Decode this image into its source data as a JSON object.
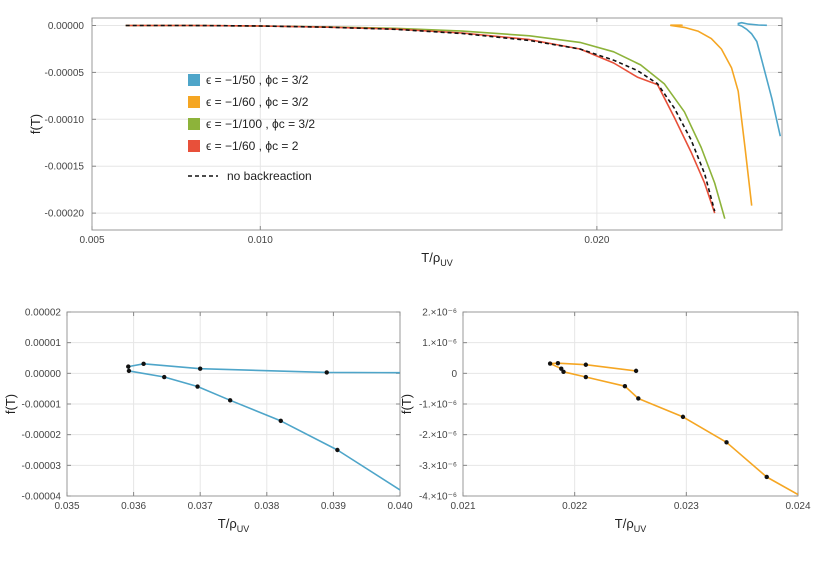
{
  "chart_data": [
    {
      "type": "line",
      "xlabel": "T/ρ",
      "xlabel_sub": "UV",
      "ylabel": "f(T)",
      "xlim": [
        0.005,
        0.0255
      ],
      "ylim": [
        -0.000218,
        8e-06
      ],
      "xticks": [
        0.005,
        0.01,
        0.02
      ],
      "xtick_labels": [
        "0.005",
        "0.010",
        "0.020"
      ],
      "yticks": [
        0,
        -5e-05,
        -0.0001,
        -0.00015,
        -0.0002
      ],
      "ytick_labels": [
        "0.00000",
        "-0.00005",
        "-0.00010",
        "-0.00015",
        "-0.00020"
      ],
      "grid": true,
      "legend_position": "left-center",
      "series": [
        {
          "name": "ϵ = −1/50 ,  ϕc = 3/2",
          "color": "#4ea5c9",
          "dash": false,
          "x": [
            0.0242,
            0.0244,
            0.0246,
            0.0248,
            0.025,
            0.0252,
            0.0254,
            0.0242,
            0.0244,
            0.0246,
            0.0248,
            0.025
          ],
          "y": [
            1.5e-06,
            1e-06,
            5e-07,
            3e-07,
            2e-07,
            1e-07,
            0.0,
            1.5e-06,
            -5e-06,
            -1.8e-05,
            -3.5e-05,
            -6e-05
          ],
          "segments": [
            {
              "x": [
                0.02418,
                0.0243,
                0.0245,
                0.0248,
                0.02505
              ],
              "y": [
                2e-06,
                3e-06,
                1.5e-06,
                5e-07,
                2e-07
              ]
            },
            {
              "x": [
                0.02418,
                0.0243,
                0.02445,
                0.0246,
                0.02475,
                0.0249,
                0.0252,
                0.02545
              ],
              "y": [
                1e-06,
                -5e-07,
                -4e-06,
                -9e-06,
                -1.7e-05,
                -3.7e-05,
                -7.8e-05,
                -0.000118
              ]
            }
          ]
        },
        {
          "name": "ϵ = −1/60 ,  ϕc = 3/2",
          "color": "#f5a623",
          "dash": false,
          "segments": [
            {
              "x": [
                0.02218,
                0.0222,
                0.0225,
                0.02255
              ],
              "y": [
                3e-07,
                3e-07,
                3e-07,
                1e-07
              ]
            },
            {
              "x": [
                0.02218,
                0.0222,
                0.0226,
                0.023,
                0.0234,
                0.0237,
                0.024,
                0.0242,
                0.0244,
                0.0246
              ],
              "y": [
                3e-07,
                0.0,
                -2e-06,
                -6e-06,
                -1.4e-05,
                -2.5e-05,
                -4.5e-05,
                -7e-05,
                -0.00013,
                -0.000192
              ]
            }
          ]
        },
        {
          "name": "ϵ = −1/100 ,  ϕc = 3/2",
          "color": "#8db33a",
          "dash": false,
          "segments": [
            {
              "x": [
                0.006,
                0.008,
                0.01,
                0.012,
                0.014,
                0.016,
                0.018,
                0.0195,
                0.0205,
                0.0213,
                0.022,
                0.0226,
                0.0231,
                0.0235,
                0.0238
              ],
              "y": [
                0.0,
                0.0,
                -5e-07,
                -1.5e-06,
                -3e-06,
                -6e-06,
                -1.1e-05,
                -1.8e-05,
                -2.8e-05,
                -4.2e-05,
                -6.2e-05,
                -9.2e-05,
                -0.00013,
                -0.000168,
                -0.000206
              ]
            }
          ]
        },
        {
          "name": "ϵ = −1/60 ,  ϕc = 2",
          "color": "#e8503a",
          "dash": false,
          "segments": [
            {
              "x": [
                0.006,
                0.008,
                0.01,
                0.012,
                0.014,
                0.016,
                0.018,
                0.0195,
                0.0205,
                0.0212,
                0.0218,
                0.0223,
                0.0228,
                0.0232,
                0.0235
              ],
              "y": [
                0.0,
                0.0,
                -5e-07,
                -1.8e-06,
                -3.8e-06,
                -8e-06,
                -1.5e-05,
                -2.5e-05,
                -4e-05,
                -5.5e-05,
                -6.3e-05,
                -9.8e-05,
                -0.000135,
                -0.000168,
                -0.0002
              ]
            }
          ]
        },
        {
          "name": "no backreaction",
          "color": "#111111",
          "dash": true,
          "segments": [
            {
              "x": [
                0.006,
                0.008,
                0.01,
                0.012,
                0.014,
                0.016,
                0.018,
                0.0195,
                0.0205,
                0.0212,
                0.0218,
                0.0223,
                0.0228,
                0.0232,
                0.0235
              ],
              "y": [
                0.0,
                0.0,
                -5e-07,
                -1.8e-06,
                -4e-06,
                -8.5e-06,
                -1.6e-05,
                -2.5e-05,
                -3.7e-05,
                -4.8e-05,
                -6.2e-05,
                -8.8e-05,
                -0.000122,
                -0.000158,
                -0.000198
              ]
            }
          ]
        }
      ]
    },
    {
      "type": "line",
      "xlabel": "T/ρ",
      "xlabel_sub": "UV",
      "ylabel": "f(T)",
      "xlim": [
        0.035,
        0.04
      ],
      "ylim": [
        -4e-05,
        2e-05
      ],
      "xticks": [
        0.035,
        0.036,
        0.037,
        0.038,
        0.039,
        0.04
      ],
      "xtick_labels": [
        "0.035",
        "0.036",
        "0.037",
        "0.038",
        "0.039",
        "0.040"
      ],
      "yticks": [
        2e-05,
        1e-05,
        0.0,
        -1e-05,
        -2e-05,
        -3e-05,
        -4e-05
      ],
      "ytick_labels": [
        "0.00002",
        "0.00001",
        "0.00000",
        "-0.00001",
        "-0.00002",
        "-0.00003",
        "-0.00004"
      ],
      "grid": true,
      "series": [
        {
          "color": "#4ea5c9",
          "segments": [
            {
              "x": [
                0.03592,
                0.03615,
                0.037,
                0.0389,
                0.04
              ],
              "y": [
                2.2e-06,
                3.1e-06,
                1.5e-06,
                3e-07,
                2e-07
              ]
            },
            {
              "x": [
                0.03592,
                0.03593,
                0.03646,
                0.03696,
                0.03745,
                0.03821,
                0.03906,
                0.04
              ],
              "y": [
                2.2e-06,
                8e-07,
                -1.2e-06,
                -4.3e-06,
                -8.8e-06,
                -1.55e-05,
                -2.5e-05,
                -3.8e-05
              ]
            }
          ],
          "points": {
            "x": [
              0.03592,
              0.03593,
              0.03615,
              0.03646,
              0.03696,
              0.037,
              0.03745,
              0.03821,
              0.0389,
              0.03906
            ],
            "y": [
              2.2e-06,
              8e-07,
              3.1e-06,
              -1.2e-06,
              -4.3e-06,
              1.5e-06,
              -8.8e-06,
              -1.55e-05,
              3e-07,
              -2.5e-05
            ]
          }
        }
      ]
    },
    {
      "type": "line",
      "xlabel": "T/ρ",
      "xlabel_sub": "UV",
      "ylabel": "f(T)",
      "xlim": [
        0.021,
        0.024
      ],
      "ylim": [
        -4e-06,
        2e-06
      ],
      "xticks": [
        0.021,
        0.022,
        0.023,
        0.024
      ],
      "xtick_labels": [
        "0.021",
        "0.022",
        "0.023",
        "0.024"
      ],
      "yticks": [
        2e-06,
        1e-06,
        0.0,
        -1e-06,
        -2e-06,
        -3e-06,
        -4e-06
      ],
      "ytick_labels": [
        "2.×10⁻⁶",
        "1.×10⁻⁶",
        "0",
        "-1.×10⁻⁶",
        "-2.×10⁻⁶",
        "-3.×10⁻⁶",
        "-4.×10⁻⁶"
      ],
      "grid": true,
      "series": [
        {
          "color": "#f5a623",
          "segments": [
            {
              "x": [
                0.02178,
                0.02185,
                0.0221,
                0.02255
              ],
              "y": [
                3.2e-07,
                3.3e-07,
                2.8e-07,
                8e-08
              ]
            },
            {
              "x": [
                0.02178,
                0.02188,
                0.0219,
                0.0221,
                0.02245,
                0.02257,
                0.02297,
                0.02336,
                0.02372,
                0.024
              ],
              "y": [
                3.2e-07,
                1.5e-07,
                5e-08,
                -1.2e-07,
                -4.2e-07,
                -8.2e-07,
                -1.42e-06,
                -2.25e-06,
                -3.38e-06,
                -3.95e-06
              ]
            }
          ],
          "points": {
            "x": [
              0.02178,
              0.02185,
              0.02188,
              0.0219,
              0.0221,
              0.0221,
              0.02245,
              0.02255,
              0.02257,
              0.02297,
              0.02336,
              0.02372
            ],
            "y": [
              3.2e-07,
              3.3e-07,
              1.5e-07,
              5e-08,
              2.8e-07,
              -1.2e-07,
              -4.2e-07,
              8e-08,
              -8.2e-07,
              -1.42e-06,
              -2.25e-06,
              -3.38e-06
            ]
          }
        }
      ]
    }
  ]
}
